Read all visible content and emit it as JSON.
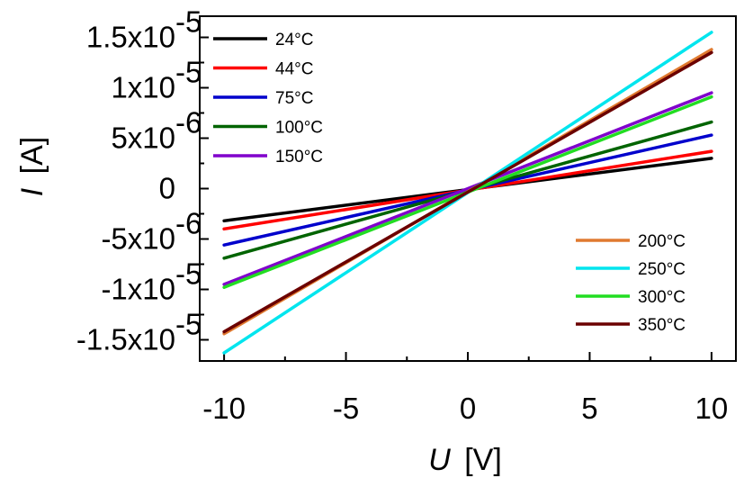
{
  "chart_data": {
    "type": "line",
    "title": "",
    "xlabel": {
      "symbol": "U",
      "unit": "[V]"
    },
    "ylabel": {
      "symbol": "I",
      "unit": "[A]"
    },
    "xlim": [
      -11,
      11
    ],
    "ylim": [
      -1.71e-05,
      1.71e-05
    ],
    "x_ticks": [
      {
        "value": -10,
        "label": "-10"
      },
      {
        "value": -5,
        "label": "-5"
      },
      {
        "value": 0,
        "label": "0"
      },
      {
        "value": 5,
        "label": "5"
      },
      {
        "value": 10,
        "label": "10"
      }
    ],
    "y_ticks": [
      {
        "value": 1.5e-05,
        "mantissa": "1.5x10",
        "exp": "-5"
      },
      {
        "value": 1e-05,
        "mantissa": "1x10",
        "exp": "-5"
      },
      {
        "value": 5e-06,
        "mantissa": "5x10",
        "exp": "-6"
      },
      {
        "value": 0,
        "mantissa": "0",
        "exp": ""
      },
      {
        "value": -5e-06,
        "mantissa": "-5x10",
        "exp": "-6"
      },
      {
        "value": -1e-05,
        "mantissa": "-1x10",
        "exp": "-5"
      },
      {
        "value": -1.5e-05,
        "mantissa": "-1.5x10",
        "exp": "-5"
      }
    ],
    "grid": false,
    "legend_groups": [
      {
        "placement": "top-left",
        "series": [
          "24°C",
          "44°C",
          "75°C",
          "100°C",
          "150°C"
        ]
      },
      {
        "placement": "bottom-right",
        "series": [
          "200°C",
          "250°C",
          "300°C",
          "350°C"
        ]
      }
    ],
    "series": [
      {
        "name": "24°C",
        "color": "#000000",
        "x": [
          -10,
          10
        ],
        "y": [
          -3.2e-06,
          3e-06
        ]
      },
      {
        "name": "44°C",
        "color": "#ff0000",
        "x": [
          -10,
          10
        ],
        "y": [
          -4e-06,
          3.7e-06
        ]
      },
      {
        "name": "75°C",
        "color": "#0000cc",
        "x": [
          -10,
          10
        ],
        "y": [
          -5.6e-06,
          5.3e-06
        ]
      },
      {
        "name": "100°C",
        "color": "#006400",
        "x": [
          -10,
          10
        ],
        "y": [
          -6.9e-06,
          6.6e-06
        ]
      },
      {
        "name": "150°C",
        "color": "#8000cc",
        "x": [
          -10,
          10
        ],
        "y": [
          -9.5e-06,
          9.5e-06
        ]
      },
      {
        "name": "200°C",
        "color": "#e07a30",
        "x": [
          -10,
          10
        ],
        "y": [
          -1.44e-05,
          1.38e-05
        ]
      },
      {
        "name": "250°C",
        "color": "#00e5ee",
        "x": [
          -10,
          10
        ],
        "y": [
          -1.63e-05,
          1.55e-05
        ]
      },
      {
        "name": "300°C",
        "color": "#22dd22",
        "x": [
          -10,
          10
        ],
        "y": [
          -9.8e-06,
          9.1e-06
        ]
      },
      {
        "name": "350°C",
        "color": "#6b0000",
        "x": [
          -10,
          10
        ],
        "y": [
          -1.42e-05,
          1.35e-05
        ]
      }
    ]
  }
}
